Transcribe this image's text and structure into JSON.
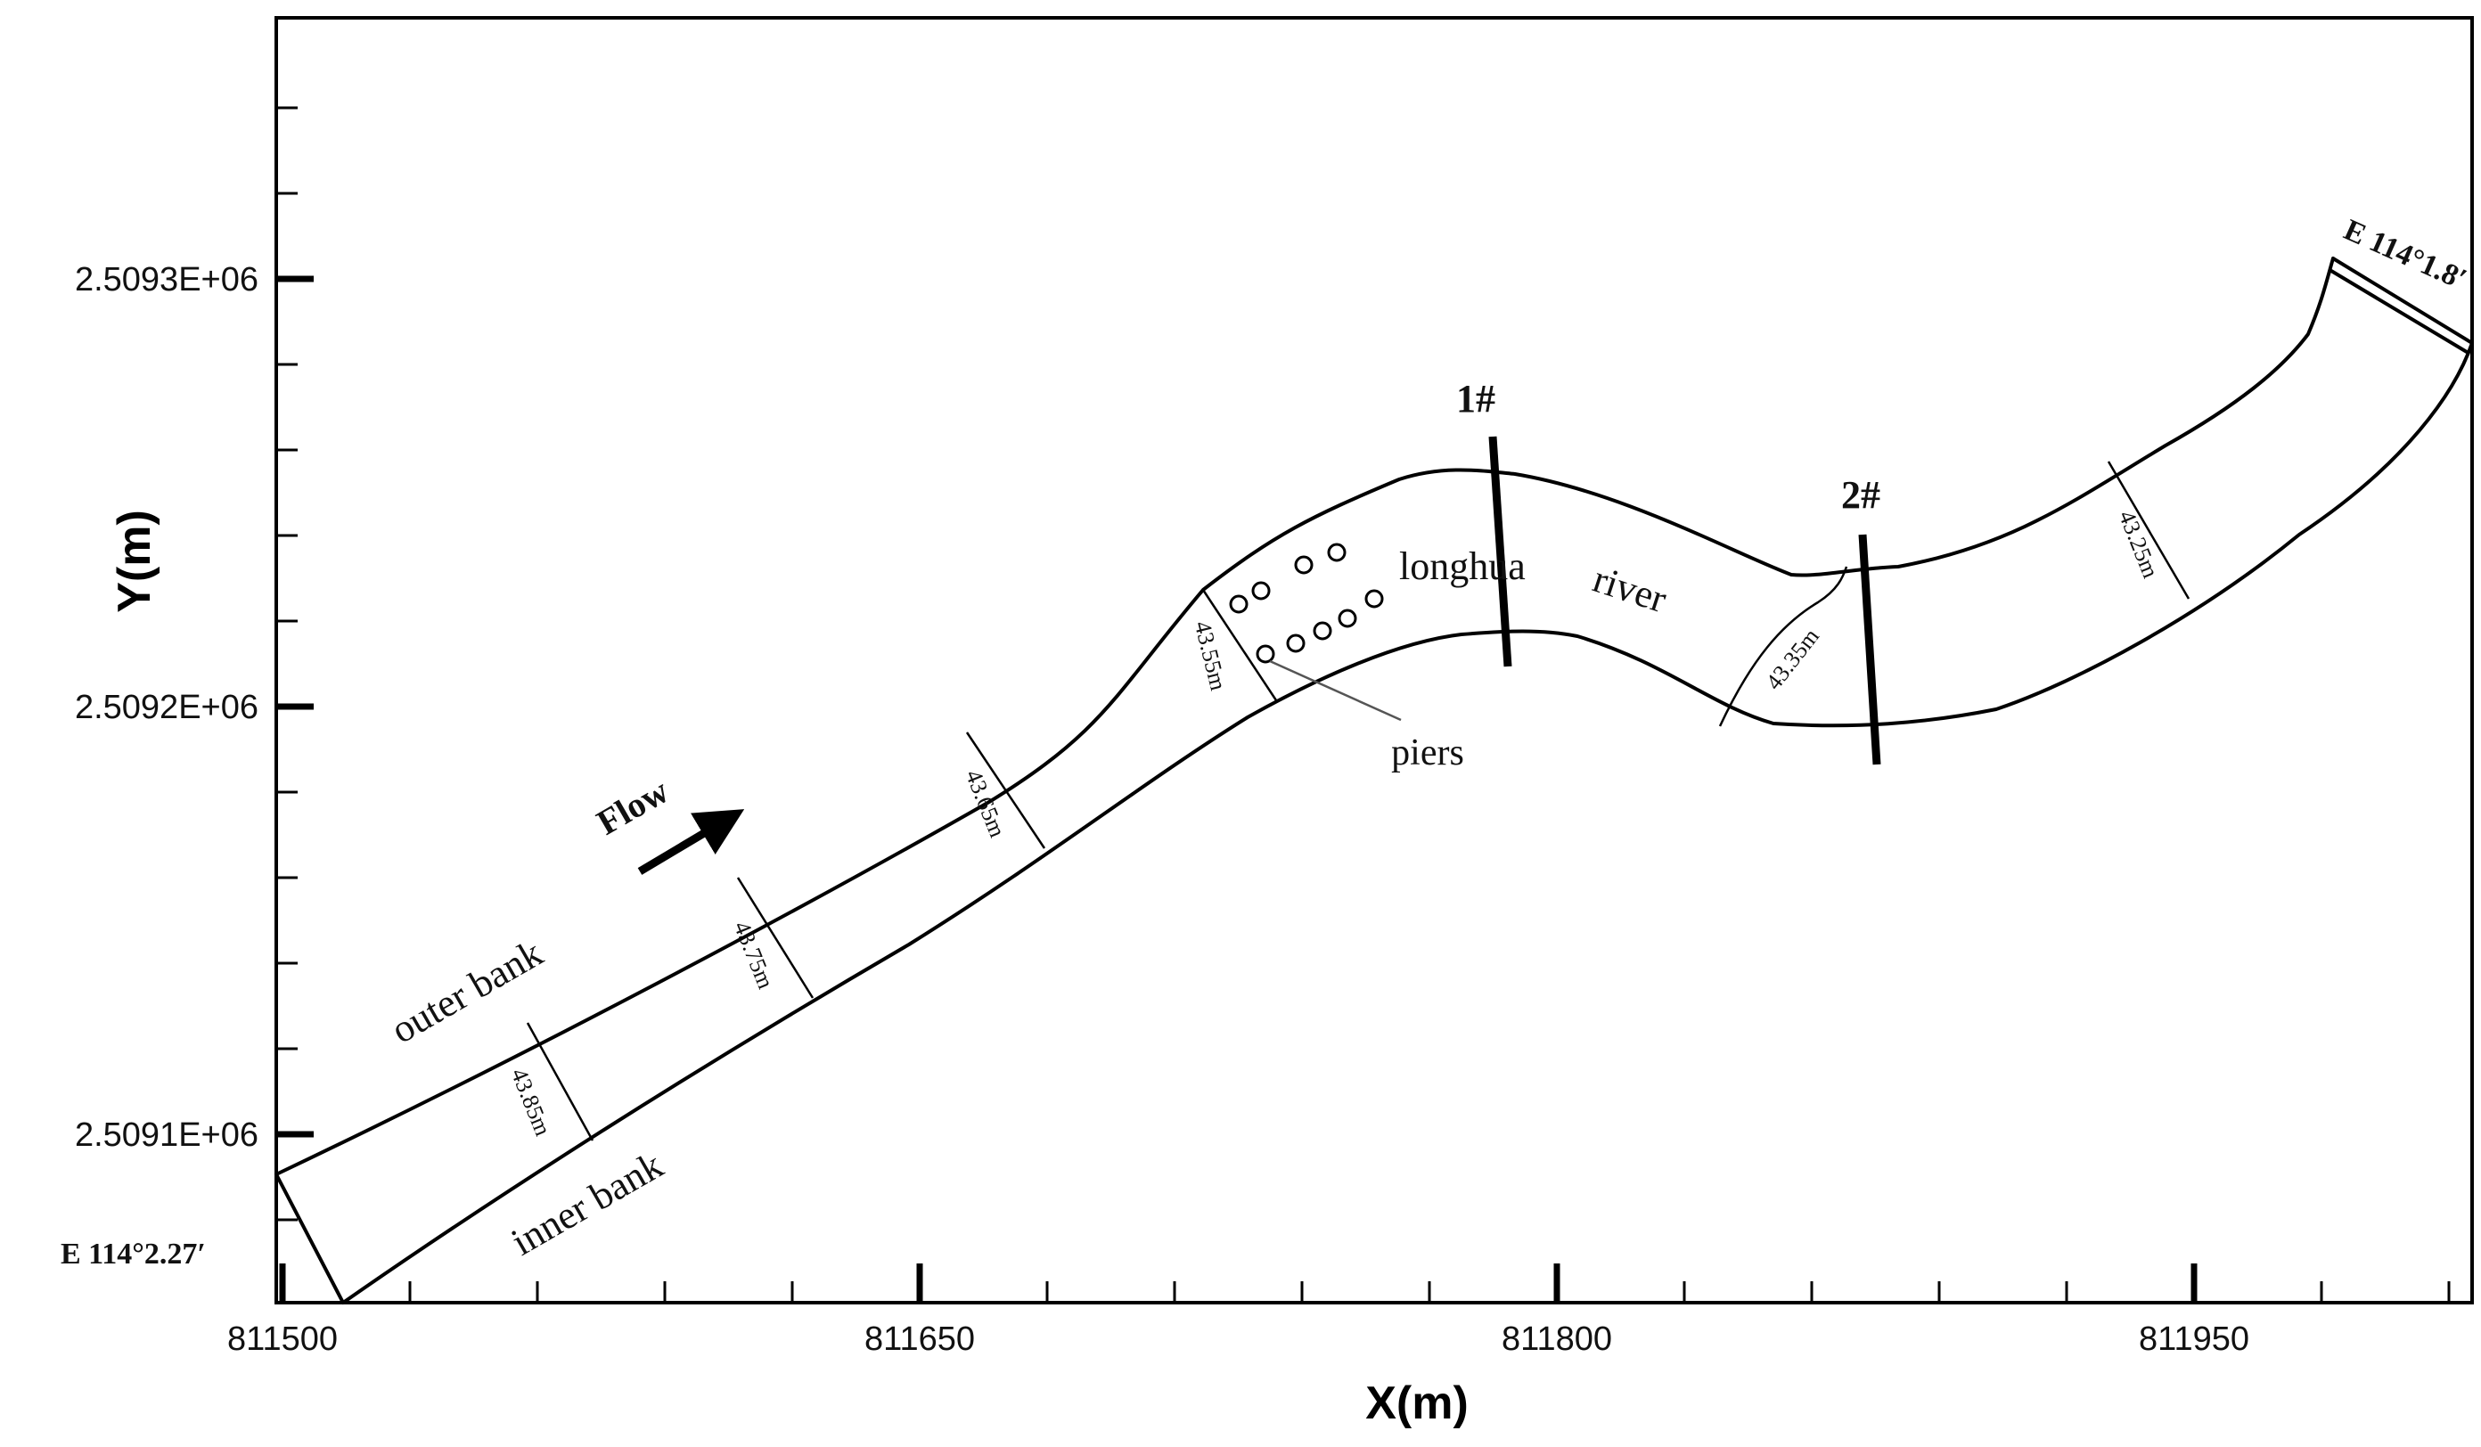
{
  "axes": {
    "xlabel": "X(m)",
    "ylabel": "Y(m)",
    "x_ticks": [
      "811500",
      "811650",
      "811800",
      "811950"
    ],
    "y_ticks": [
      "2.5091E+06",
      "2.5092E+06",
      "2.5093E+06"
    ]
  },
  "river": {
    "name_part1": "longhua",
    "name_part2": "river",
    "outer_bank_label": "outer bank",
    "inner_bank_label": "inner bank",
    "flow_label": "Flow",
    "piers_label": "piers",
    "inlet_coord": "E 114°2.27′",
    "outlet_coord": "E 114°1.8′",
    "widths": [
      "43.85m",
      "43.75m",
      "43.65m",
      "43.55m",
      "43.35m",
      "43.25m"
    ],
    "sections": [
      "1#",
      "2#"
    ]
  }
}
